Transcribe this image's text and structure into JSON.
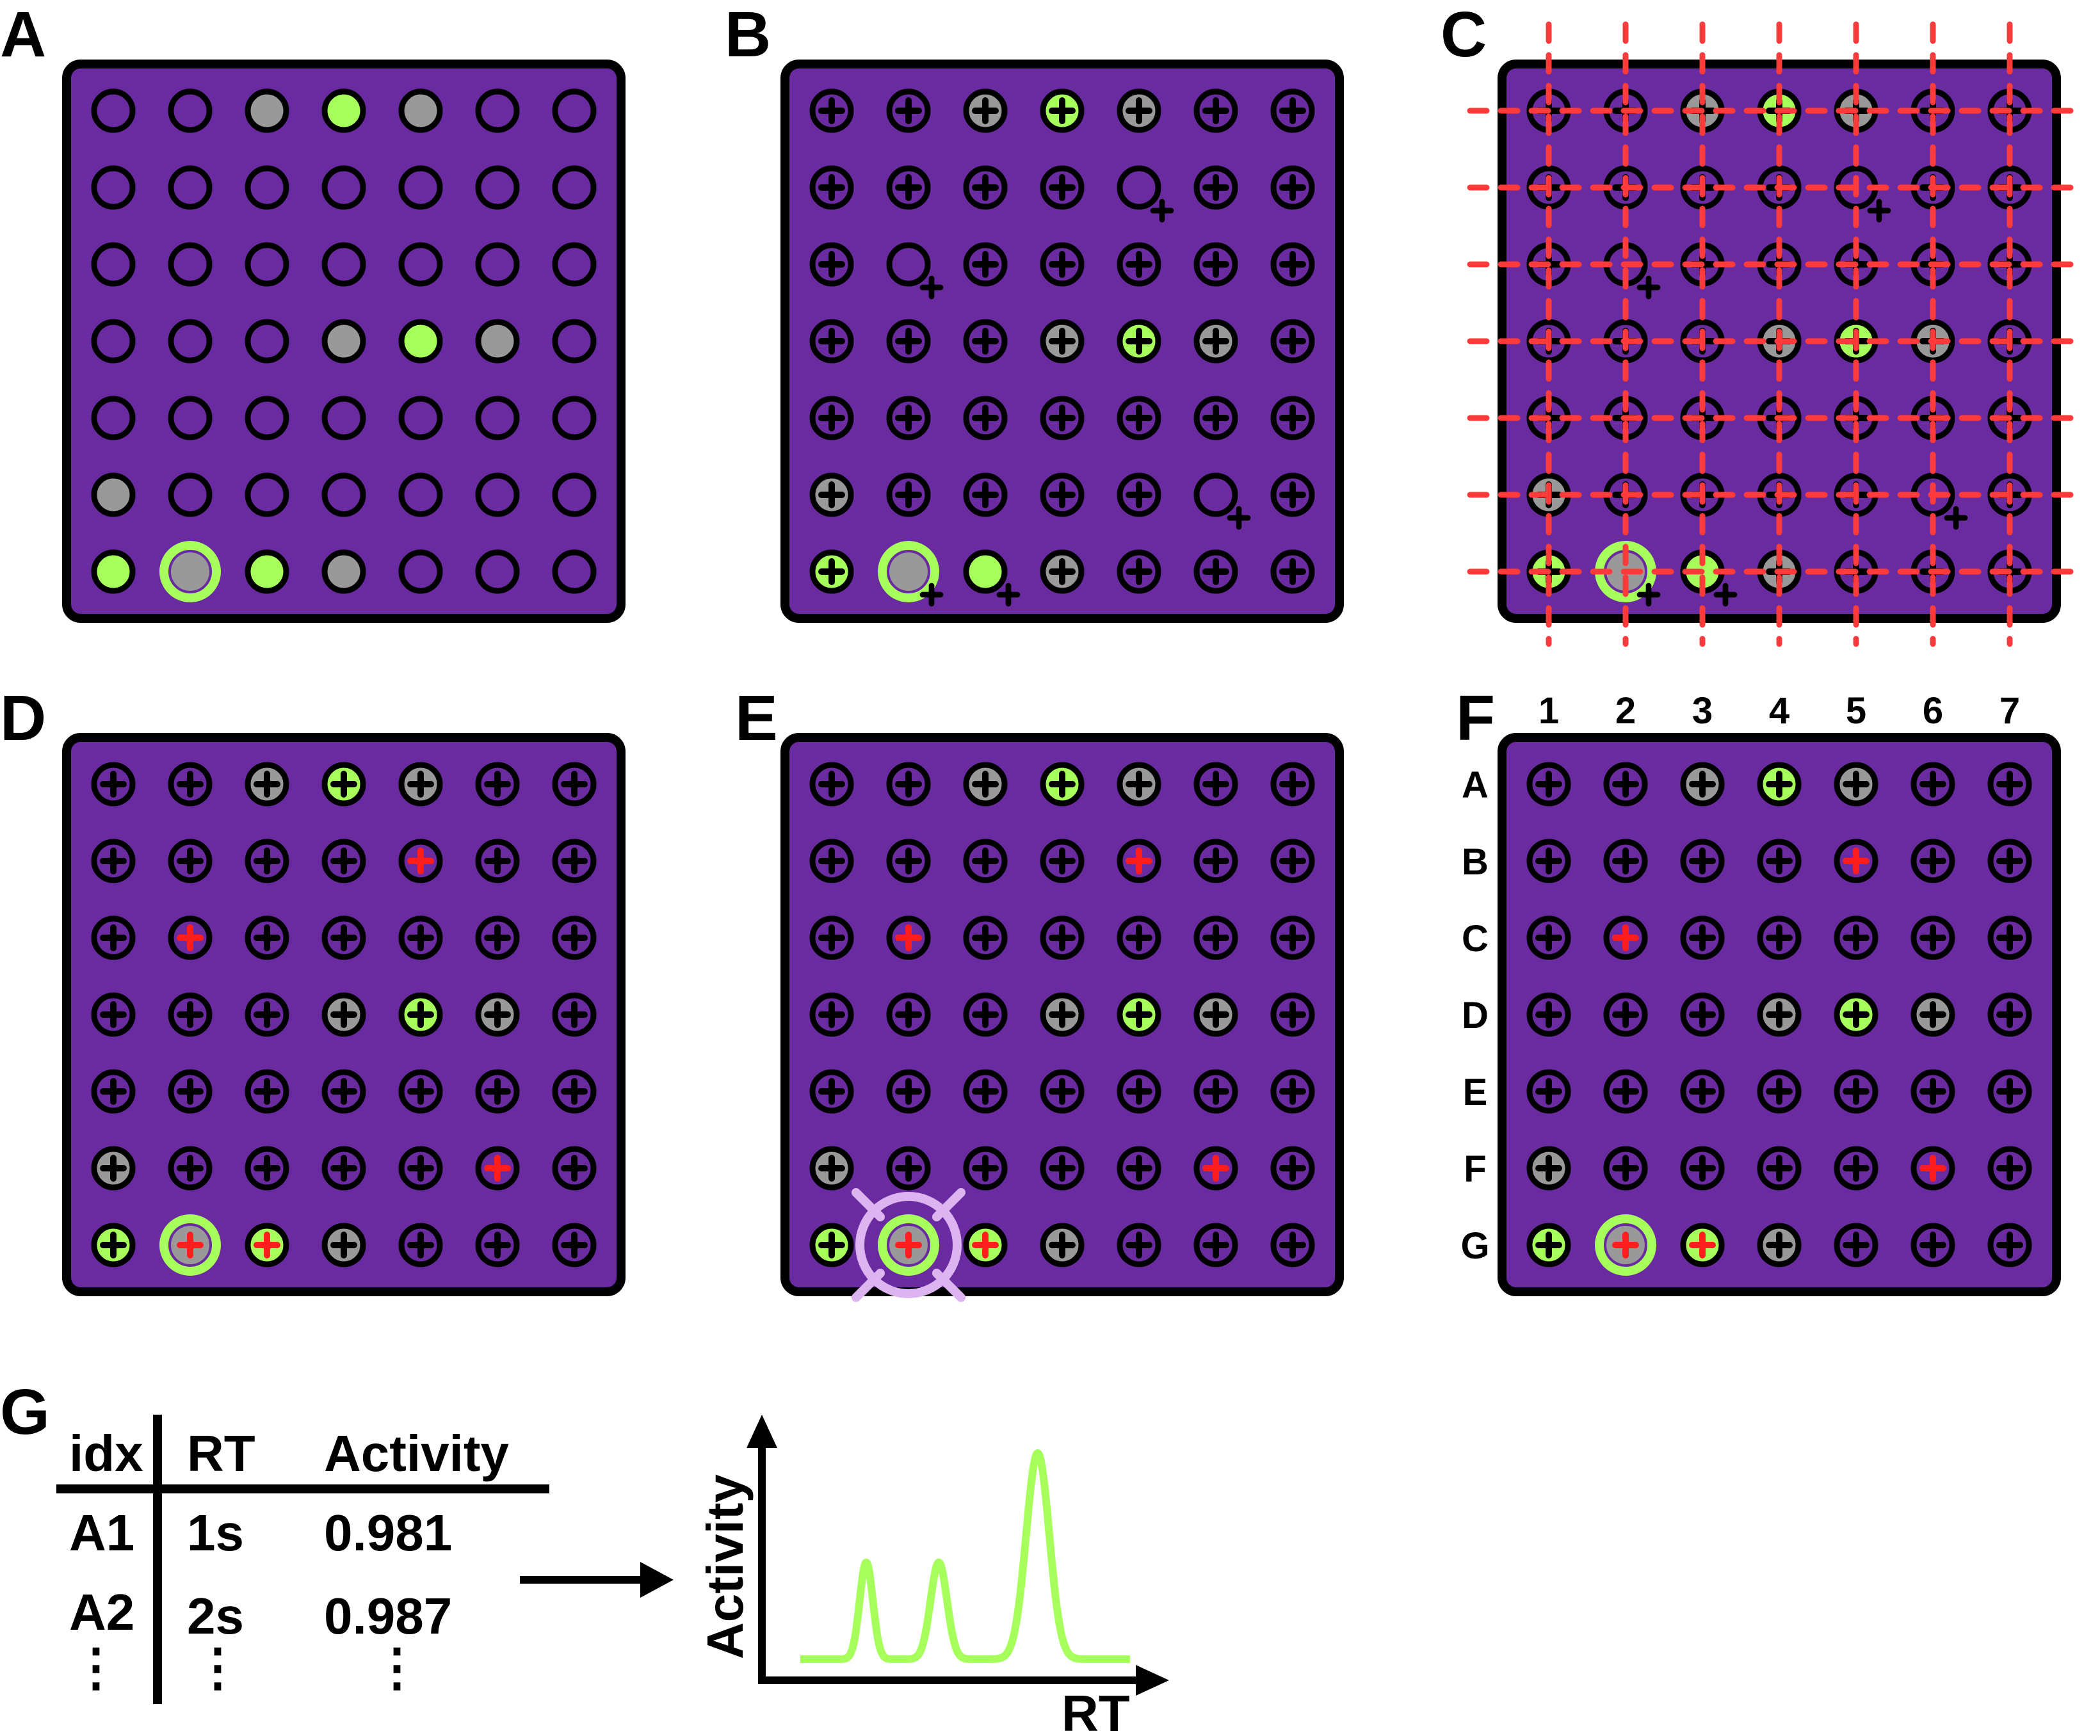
{
  "colors": {
    "plate": "#6a2aa0",
    "ring": "#000000",
    "gray": "#999999",
    "green": "#a6ff5a",
    "red": "#ff1e1e",
    "grid": "#ff3a3a",
    "target": "#dcb4f0",
    "trace": "#a6ff5a"
  },
  "panels": [
    {
      "label": "A"
    },
    {
      "label": "B"
    },
    {
      "label": "C"
    },
    {
      "label": "D"
    },
    {
      "label": "E"
    },
    {
      "label": "F"
    }
  ],
  "plate_grid": {
    "rows": 7,
    "cols": 7,
    "gray_wells": [
      [
        0,
        2
      ],
      [
        0,
        4
      ],
      [
        3,
        3
      ],
      [
        3,
        5
      ],
      [
        5,
        0
      ],
      [
        6,
        1
      ],
      [
        6,
        3
      ]
    ],
    "green_wells": [
      [
        0,
        3
      ],
      [
        3,
        4
      ],
      [
        6,
        0
      ],
      [
        6,
        2
      ]
    ],
    "ring_green_well": [
      6,
      1
    ],
    "red_wells": [
      [
        1,
        4
      ],
      [
        2,
        1
      ],
      [
        5,
        5
      ],
      [
        6,
        1
      ],
      [
        6,
        2
      ]
    ],
    "displaced_wells_b": [
      [
        1,
        4
      ],
      [
        2,
        1
      ],
      [
        5,
        5
      ],
      [
        6,
        1
      ],
      [
        6,
        2
      ]
    ]
  },
  "panel_f": {
    "column_labels": [
      "1",
      "2",
      "3",
      "4",
      "5",
      "6",
      "7"
    ],
    "row_labels": [
      "A",
      "B",
      "C",
      "D",
      "E",
      "F",
      "G"
    ]
  },
  "panel_g": {
    "label": "G",
    "table": {
      "headers": [
        "idx",
        "RT",
        "Activity"
      ],
      "rows": [
        [
          "A1",
          "1s",
          "0.981"
        ],
        [
          "A2",
          "2s",
          "0.987"
        ]
      ],
      "ellipsis": "⋮"
    },
    "chart_data": {
      "type": "line",
      "xlabel": "RT",
      "ylabel": "Activity",
      "peaks": [
        {
          "position": 0.2,
          "height": 0.47,
          "width": 0.02
        },
        {
          "position": 0.42,
          "height": 0.47,
          "width": 0.025
        },
        {
          "position": 0.72,
          "height": 1.0,
          "width": 0.035
        }
      ]
    }
  }
}
